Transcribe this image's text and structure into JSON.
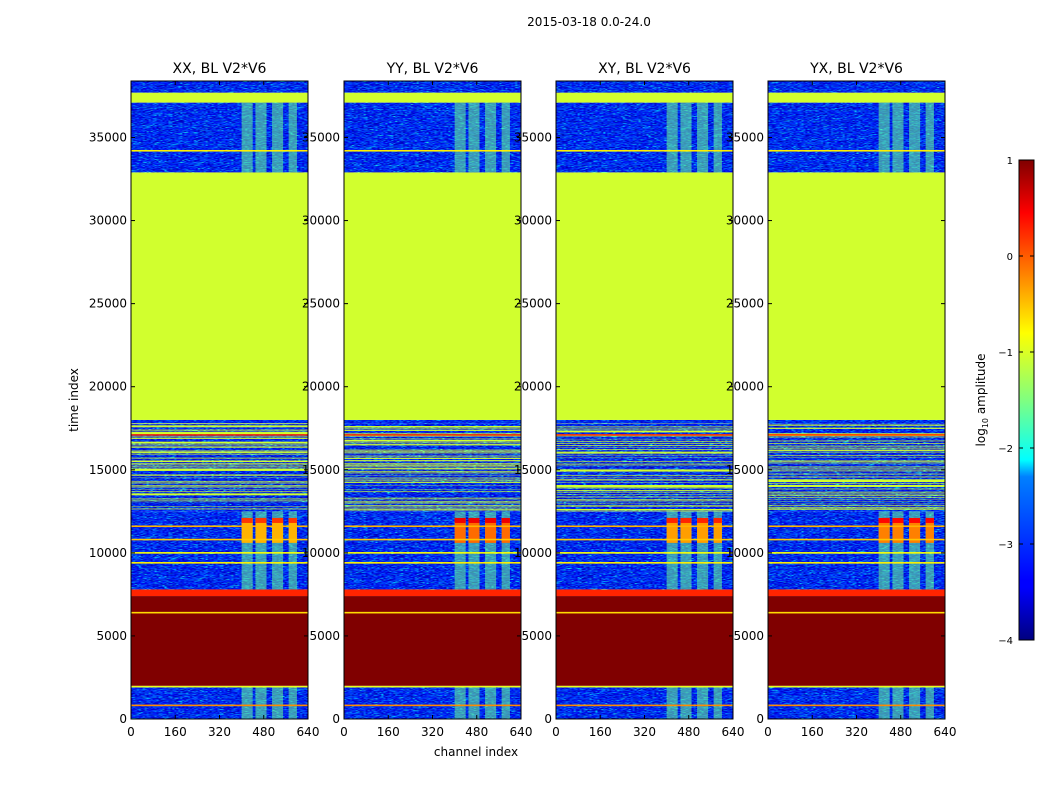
{
  "chart_data": {
    "type": "heatmap",
    "suptitle": "2015-03-18 0.0-24.0",
    "xlabel": "channel index",
    "ylabel": "time index",
    "xlim": [
      0,
      640
    ],
    "ylim": [
      0,
      38400
    ],
    "xticks": [
      "0",
      "160",
      "320",
      "480",
      "640"
    ],
    "yticks": [
      "0",
      "5000",
      "10000",
      "15000",
      "20000",
      "25000",
      "30000",
      "35000"
    ],
    "colorbar": {
      "label_prefix": "log",
      "label_sub": "10",
      "label_suffix": " amplitude",
      "range": [
        -4,
        1
      ],
      "ticks": [
        "1",
        "0",
        "−1",
        "−2",
        "−3",
        "−4"
      ],
      "colormap": "jet"
    },
    "panels": [
      {
        "title": "XX, BL V2*V6",
        "burst_peak": 0.1
      },
      {
        "title": "YY, BL V2*V6",
        "burst_peak": 0.45
      },
      {
        "title": "XY, BL V2*V6",
        "burst_peak": 0.2
      },
      {
        "title": "YX, BL V2*V6",
        "burst_peak": 0.35
      }
    ],
    "bands": [
      {
        "t0": 0,
        "t1": 1900,
        "kind": "noise"
      },
      {
        "t0": 1900,
        "t1": 2000,
        "kind": "gap",
        "value": -1
      },
      {
        "t0": 2000,
        "t1": 7400,
        "kind": "flag",
        "value": 1
      },
      {
        "t0": 7400,
        "t1": 7800,
        "kind": "line",
        "value": 0.2
      },
      {
        "t0": 7800,
        "t1": 12500,
        "kind": "noise"
      },
      {
        "t0": 12500,
        "t1": 17800,
        "kind": "striped"
      },
      {
        "t0": 17800,
        "t1": 18000,
        "kind": "noise"
      },
      {
        "t0": 18000,
        "t1": 32900,
        "kind": "flag",
        "value": -1.1
      },
      {
        "t0": 32900,
        "t1": 37100,
        "kind": "noise"
      },
      {
        "t0": 37100,
        "t1": 37700,
        "kind": "flag",
        "value": -1.1
      },
      {
        "t0": 37700,
        "t1": 38400,
        "kind": "noise"
      }
    ],
    "hlines": [
      {
        "t": 820,
        "value": -0.3
      },
      {
        "t": 6400,
        "value": -0.7
      },
      {
        "t": 9400,
        "value": -0.8
      },
      {
        "t": 10000,
        "value": -0.9
      },
      {
        "t": 10800,
        "value": -0.6
      },
      {
        "t": 11600,
        "value": -0.5
      },
      {
        "t": 17100,
        "value": 0.1
      },
      {
        "t": 34200,
        "value": -0.8
      }
    ],
    "rfi_channels": [
      [
        400,
        440
      ],
      [
        450,
        490
      ],
      [
        510,
        550
      ],
      [
        570,
        600
      ]
    ]
  }
}
